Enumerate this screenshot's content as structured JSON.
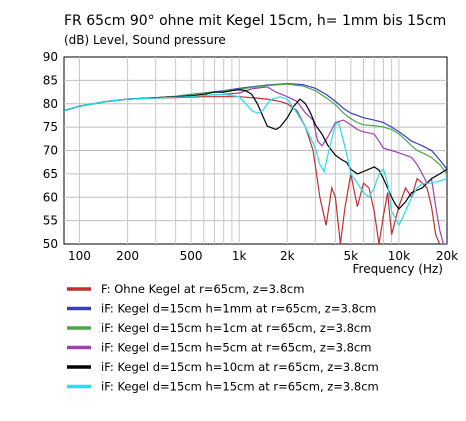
{
  "chart_data": {
    "type": "line",
    "title": "FR 65cm 90° ohne mit Kegel 15cm, h= 1mm bis 15cm",
    "subtitle": "(dB)  Level, Sound pressure",
    "xlabel": "Frequency  (Hz)",
    "ylabel": "",
    "xscale": "log",
    "xlim": [
      80,
      20000
    ],
    "ylim": [
      50,
      90
    ],
    "grid": true,
    "legend_position": "below",
    "x_ticks": [
      {
        "value": 100,
        "label": "100"
      },
      {
        "value": 200,
        "label": "200"
      },
      {
        "value": 500,
        "label": "500"
      },
      {
        "value": 1000,
        "label": "1k"
      },
      {
        "value": 2000,
        "label": "2k"
      },
      {
        "value": 5000,
        "label": "5k"
      },
      {
        "value": 10000,
        "label": "10k"
      },
      {
        "value": 20000,
        "label": "20k"
      }
    ],
    "y_ticks": [
      50,
      55,
      60,
      65,
      70,
      75,
      80,
      85,
      90
    ],
    "series": [
      {
        "name": "F: Ohne Kegel at r=65cm, z=3.8cm",
        "color": "#c03030",
        "points": [
          [
            80,
            78.5
          ],
          [
            100,
            79.5
          ],
          [
            150,
            80.5
          ],
          [
            200,
            81
          ],
          [
            300,
            81.2
          ],
          [
            400,
            81.3
          ],
          [
            500,
            81.4
          ],
          [
            600,
            81.5
          ],
          [
            800,
            81.5
          ],
          [
            1000,
            81.5
          ],
          [
            1200,
            81.3
          ],
          [
            1500,
            81
          ],
          [
            1800,
            80.5
          ],
          [
            2000,
            80
          ],
          [
            2300,
            78.5
          ],
          [
            2600,
            75
          ],
          [
            2900,
            70
          ],
          [
            3200,
            60
          ],
          [
            3500,
            54
          ],
          [
            3800,
            62
          ],
          [
            4000,
            60
          ],
          [
            4300,
            50
          ],
          [
            4600,
            58
          ],
          [
            5000,
            65
          ],
          [
            5500,
            58
          ],
          [
            6000,
            63
          ],
          [
            6500,
            62
          ],
          [
            7000,
            57
          ],
          [
            7500,
            50
          ],
          [
            8000,
            56
          ],
          [
            8500,
            61
          ],
          [
            9000,
            52
          ],
          [
            10000,
            58
          ],
          [
            11000,
            62
          ],
          [
            12000,
            60
          ],
          [
            13000,
            64
          ],
          [
            14000,
            63
          ],
          [
            15000,
            62
          ],
          [
            16000,
            58
          ],
          [
            17000,
            52
          ],
          [
            18000,
            50
          ],
          [
            20000,
            50
          ]
        ]
      },
      {
        "name": "iF: Kegel d=15cm h=1mm at r=65cm, z=3.8cm",
        "color": "#3a3ac8",
        "points": [
          [
            80,
            78.5
          ],
          [
            100,
            79.5
          ],
          [
            150,
            80.5
          ],
          [
            200,
            81
          ],
          [
            300,
            81.3
          ],
          [
            400,
            81.6
          ],
          [
            500,
            82
          ],
          [
            600,
            82.3
          ],
          [
            800,
            82.8
          ],
          [
            1000,
            83.3
          ],
          [
            1200,
            83.6
          ],
          [
            1500,
            84
          ],
          [
            1800,
            84.2
          ],
          [
            2000,
            84.3
          ],
          [
            2500,
            84.1
          ],
          [
            3000,
            83.3
          ],
          [
            3500,
            82
          ],
          [
            4000,
            80.5
          ],
          [
            4500,
            79
          ],
          [
            5000,
            78
          ],
          [
            5500,
            77.5
          ],
          [
            6000,
            77
          ],
          [
            7000,
            76.5
          ],
          [
            8000,
            76
          ],
          [
            9000,
            75
          ],
          [
            10000,
            74
          ],
          [
            11000,
            73
          ],
          [
            12000,
            72
          ],
          [
            13000,
            71.5
          ],
          [
            14000,
            71
          ],
          [
            16000,
            70
          ],
          [
            18000,
            68
          ],
          [
            20000,
            66
          ]
        ]
      },
      {
        "name": "iF: Kegel d=15cm h=1cm at r=65cm, z=3.8cm",
        "color": "#4aa84a",
        "points": [
          [
            80,
            78.5
          ],
          [
            100,
            79.5
          ],
          [
            150,
            80.5
          ],
          [
            200,
            81
          ],
          [
            300,
            81.3
          ],
          [
            400,
            81.6
          ],
          [
            500,
            82
          ],
          [
            600,
            82.3
          ],
          [
            800,
            82.7
          ],
          [
            1000,
            83.1
          ],
          [
            1200,
            83.5
          ],
          [
            1500,
            83.9
          ],
          [
            1800,
            84.1
          ],
          [
            2000,
            84.2
          ],
          [
            2500,
            83.8
          ],
          [
            3000,
            82.8
          ],
          [
            3500,
            81.3
          ],
          [
            4000,
            79.8
          ],
          [
            4500,
            78
          ],
          [
            5000,
            76.8
          ],
          [
            5500,
            76
          ],
          [
            6000,
            75.5
          ],
          [
            7000,
            75.3
          ],
          [
            8000,
            75
          ],
          [
            9000,
            74.5
          ],
          [
            10000,
            73.5
          ],
          [
            11000,
            72.3
          ],
          [
            12000,
            71
          ],
          [
            13000,
            70
          ],
          [
            14000,
            69.5
          ],
          [
            16000,
            68.5
          ],
          [
            18000,
            67
          ],
          [
            20000,
            65
          ]
        ]
      },
      {
        "name": "iF: Kegel d=15cm h=5cm at r=65cm, z=3.8cm",
        "color": "#a040b0",
        "points": [
          [
            80,
            78.5
          ],
          [
            100,
            79.5
          ],
          [
            150,
            80.5
          ],
          [
            200,
            81
          ],
          [
            300,
            81.3
          ],
          [
            400,
            81.5
          ],
          [
            500,
            81.7
          ],
          [
            600,
            81.8
          ],
          [
            800,
            82
          ],
          [
            1000,
            82.3
          ],
          [
            1200,
            83.2
          ],
          [
            1500,
            83.6
          ],
          [
            1700,
            82.5
          ],
          [
            2000,
            81.5
          ],
          [
            2300,
            80.5
          ],
          [
            2600,
            78
          ],
          [
            2900,
            76.5
          ],
          [
            3100,
            72
          ],
          [
            3300,
            71
          ],
          [
            3600,
            73
          ],
          [
            4000,
            76
          ],
          [
            4500,
            76.5
          ],
          [
            5000,
            75.5
          ],
          [
            5500,
            74.5
          ],
          [
            6000,
            74
          ],
          [
            7000,
            73.5
          ],
          [
            7500,
            72
          ],
          [
            8000,
            70.5
          ],
          [
            9000,
            70
          ],
          [
            10000,
            69.5
          ],
          [
            11000,
            69
          ],
          [
            12000,
            68.5
          ],
          [
            13000,
            67
          ],
          [
            14000,
            65
          ],
          [
            15000,
            63
          ],
          [
            16000,
            64
          ],
          [
            17000,
            58
          ],
          [
            18000,
            53
          ],
          [
            19000,
            50
          ],
          [
            20000,
            50
          ]
        ]
      },
      {
        "name": "iF: Kegel d=15cm h=10cm at r=65cm, z=3.8cm",
        "color": "#000000",
        "points": [
          [
            80,
            78.5
          ],
          [
            100,
            79.5
          ],
          [
            150,
            80.5
          ],
          [
            200,
            81
          ],
          [
            300,
            81.3
          ],
          [
            400,
            81.5
          ],
          [
            500,
            81.7
          ],
          [
            600,
            82
          ],
          [
            700,
            82.5
          ],
          [
            800,
            82.5
          ],
          [
            900,
            82.8
          ],
          [
            1000,
            83
          ],
          [
            1100,
            82.8
          ],
          [
            1200,
            82
          ],
          [
            1300,
            80
          ],
          [
            1400,
            77.5
          ],
          [
            1500,
            75.2
          ],
          [
            1700,
            74.5
          ],
          [
            1800,
            75
          ],
          [
            2000,
            77
          ],
          [
            2200,
            79.5
          ],
          [
            2400,
            81
          ],
          [
            2600,
            80
          ],
          [
            2800,
            78
          ],
          [
            3000,
            75.5
          ],
          [
            3300,
            73.5
          ],
          [
            3600,
            71
          ],
          [
            4000,
            69
          ],
          [
            4400,
            68
          ],
          [
            4700,
            67.5
          ],
          [
            5000,
            66
          ],
          [
            5500,
            65
          ],
          [
            6000,
            65.5
          ],
          [
            6500,
            66
          ],
          [
            7000,
            66.5
          ],
          [
            7500,
            65.8
          ],
          [
            8000,
            64
          ],
          [
            8500,
            62
          ],
          [
            9000,
            60
          ],
          [
            9500,
            58.5
          ],
          [
            10000,
            57.5
          ],
          [
            11000,
            59
          ],
          [
            12000,
            61
          ],
          [
            13000,
            61.5
          ],
          [
            14000,
            62
          ],
          [
            16000,
            64
          ],
          [
            18000,
            65
          ],
          [
            20000,
            66
          ]
        ]
      },
      {
        "name": "iF: Kegel d=15cm h=15cm at r=65cm, z=3.8cm",
        "color": "#22e0f0",
        "points": [
          [
            80,
            78.5
          ],
          [
            100,
            79.5
          ],
          [
            150,
            80.5
          ],
          [
            200,
            81
          ],
          [
            300,
            81.2
          ],
          [
            400,
            81.4
          ],
          [
            500,
            81.5
          ],
          [
            600,
            81.8
          ],
          [
            800,
            82
          ],
          [
            1000,
            81.5
          ],
          [
            1100,
            80
          ],
          [
            1200,
            78.5
          ],
          [
            1300,
            78
          ],
          [
            1400,
            78.5
          ],
          [
            1500,
            80
          ],
          [
            1600,
            81
          ],
          [
            1800,
            81.5
          ],
          [
            2000,
            81
          ],
          [
            2300,
            78
          ],
          [
            2600,
            75
          ],
          [
            3000,
            70.5
          ],
          [
            3200,
            67
          ],
          [
            3400,
            65.5
          ],
          [
            3700,
            71
          ],
          [
            4000,
            75.5
          ],
          [
            4200,
            76
          ],
          [
            4500,
            72
          ],
          [
            4800,
            68
          ],
          [
            5000,
            65
          ],
          [
            5500,
            63
          ],
          [
            6000,
            61
          ],
          [
            6500,
            60
          ],
          [
            7000,
            62
          ],
          [
            7500,
            65
          ],
          [
            8000,
            66
          ],
          [
            8500,
            63
          ],
          [
            9000,
            57
          ],
          [
            9500,
            55.5
          ],
          [
            10000,
            54
          ],
          [
            11000,
            57
          ],
          [
            12000,
            60
          ],
          [
            13000,
            62
          ],
          [
            14000,
            63
          ],
          [
            16000,
            63
          ],
          [
            18000,
            63.5
          ],
          [
            20000,
            64
          ]
        ]
      }
    ]
  }
}
